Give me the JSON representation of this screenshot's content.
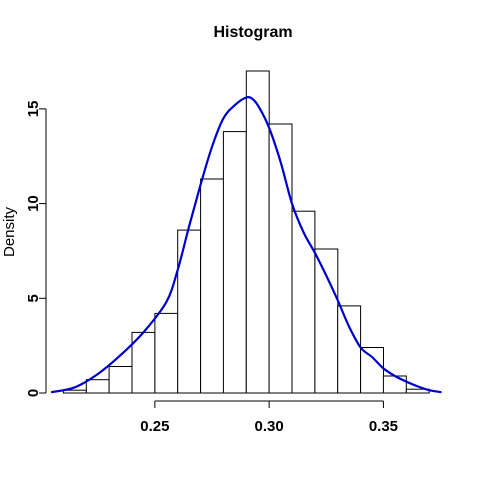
{
  "chart_data": {
    "type": "bar",
    "title": "Histogram",
    "xlabel": "",
    "ylabel": "Density",
    "xlim": [
      0.205,
      0.38
    ],
    "ylim": [
      0,
      17
    ],
    "x_ticks": [
      0.25,
      0.3,
      0.35
    ],
    "x_tick_labels": [
      "0.25",
      "0.30",
      "0.35"
    ],
    "y_ticks": [
      0,
      5,
      10,
      15
    ],
    "y_tick_labels": [
      "0",
      "5",
      "10",
      "15"
    ],
    "grid": false,
    "bins": [
      {
        "start": 0.21,
        "end": 0.22,
        "density": 0.15
      },
      {
        "start": 0.22,
        "end": 0.23,
        "density": 0.7
      },
      {
        "start": 0.23,
        "end": 0.24,
        "density": 1.4
      },
      {
        "start": 0.24,
        "end": 0.25,
        "density": 3.2
      },
      {
        "start": 0.25,
        "end": 0.26,
        "density": 4.2
      },
      {
        "start": 0.26,
        "end": 0.27,
        "density": 8.6
      },
      {
        "start": 0.27,
        "end": 0.28,
        "density": 11.3
      },
      {
        "start": 0.28,
        "end": 0.29,
        "density": 13.8
      },
      {
        "start": 0.29,
        "end": 0.3,
        "density": 17.0
      },
      {
        "start": 0.3,
        "end": 0.31,
        "density": 14.2
      },
      {
        "start": 0.31,
        "end": 0.32,
        "density": 9.6
      },
      {
        "start": 0.32,
        "end": 0.33,
        "density": 7.6
      },
      {
        "start": 0.33,
        "end": 0.34,
        "density": 4.6
      },
      {
        "start": 0.34,
        "end": 0.35,
        "density": 2.4
      },
      {
        "start": 0.35,
        "end": 0.36,
        "density": 0.9
      },
      {
        "start": 0.36,
        "end": 0.37,
        "density": 0.2
      }
    ],
    "density_curve": {
      "color": "#0000cd",
      "x": [
        0.205,
        0.215,
        0.225,
        0.235,
        0.245,
        0.255,
        0.26,
        0.265,
        0.27,
        0.275,
        0.28,
        0.285,
        0.29,
        0.293,
        0.296,
        0.3,
        0.305,
        0.31,
        0.315,
        0.32,
        0.325,
        0.33,
        0.335,
        0.34,
        0.345,
        0.35,
        0.355,
        0.36,
        0.365,
        0.37,
        0.375
      ],
      "y": [
        0.05,
        0.3,
        1.0,
        2.0,
        3.2,
        4.8,
        6.5,
        8.8,
        11.0,
        13.0,
        14.5,
        15.2,
        15.6,
        15.5,
        15.0,
        14.0,
        12.2,
        10.0,
        8.5,
        7.4,
        6.2,
        4.9,
        3.5,
        2.4,
        1.9,
        1.3,
        0.9,
        0.6,
        0.35,
        0.15,
        0.05
      ]
    }
  }
}
